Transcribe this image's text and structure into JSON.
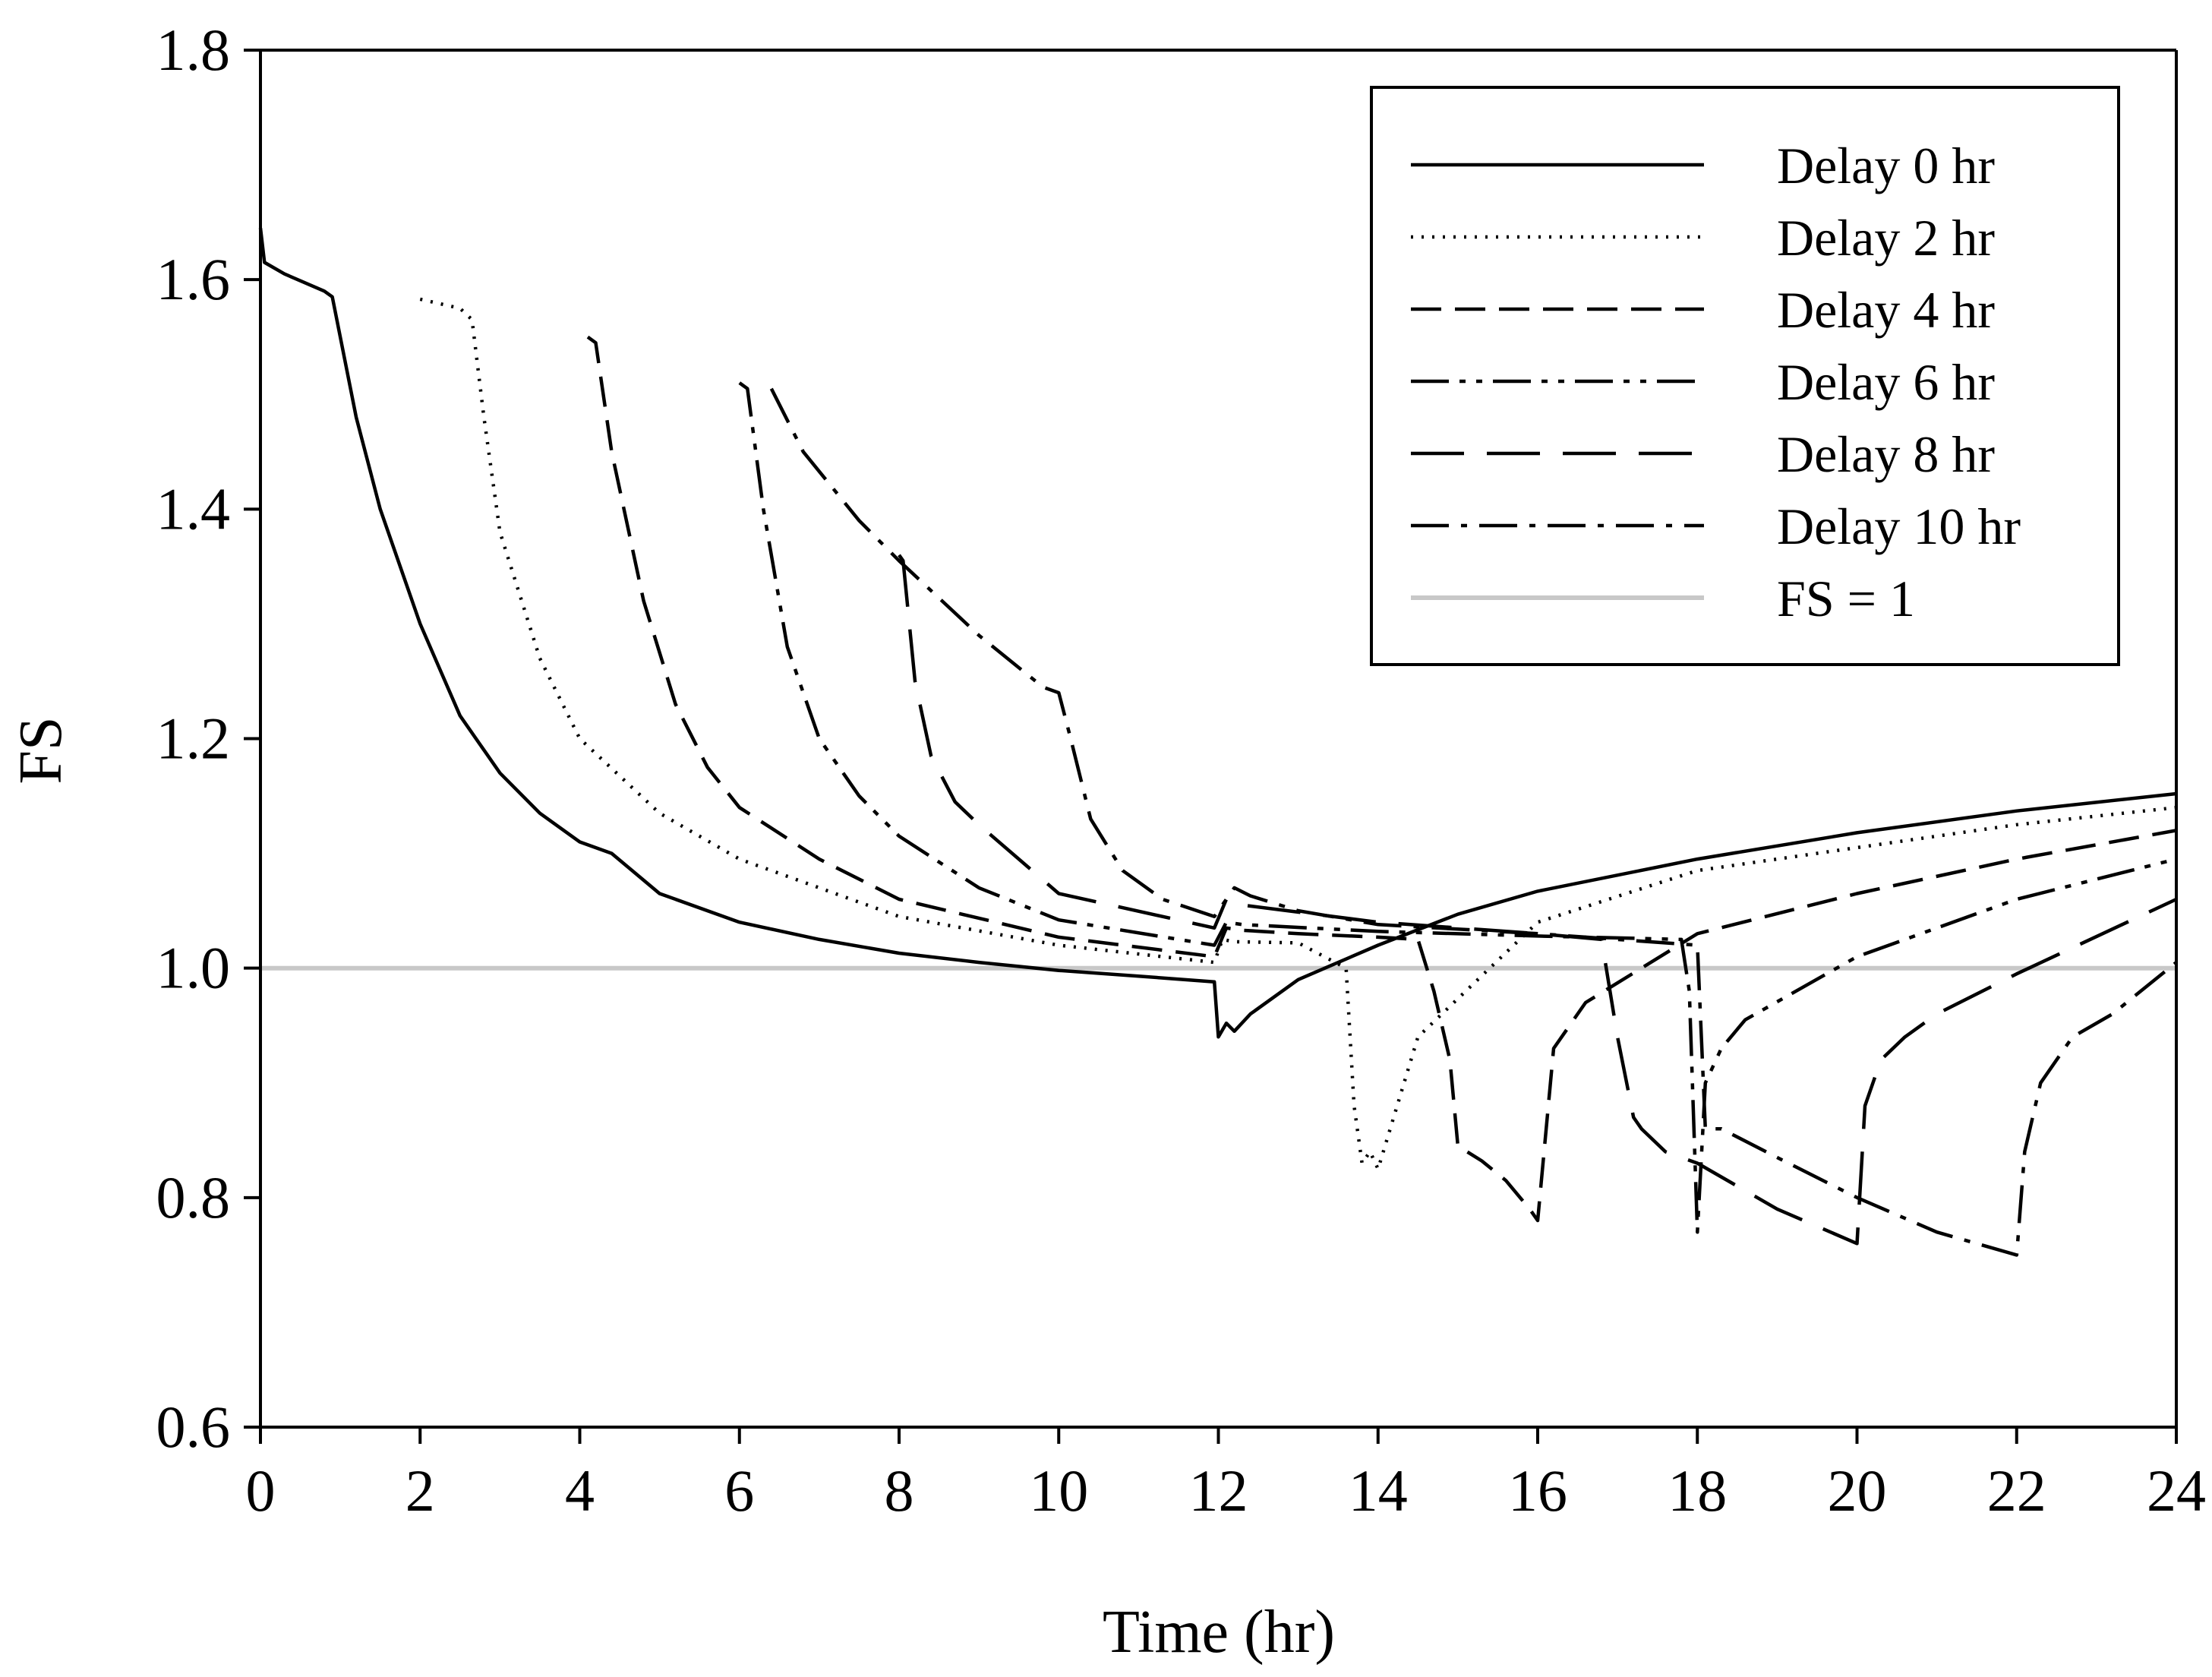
{
  "chart_data": {
    "type": "line",
    "title": "",
    "xlabel": "Time (hr)",
    "ylabel": "FS",
    "xlim": [
      0,
      24
    ],
    "ylim": [
      0.6,
      1.8
    ],
    "xticks": [
      "0",
      "2",
      "4",
      "6",
      "8",
      "10",
      "12",
      "14",
      "16",
      "18",
      "20",
      "22",
      "24"
    ],
    "yticks": [
      "0.6",
      "0.8",
      "1.0",
      "1.2",
      "1.4",
      "1.6",
      "1.8"
    ],
    "grid": false,
    "legend_position": "top-right",
    "series": [
      {
        "name": "Delay 0 hr",
        "color": "#000000",
        "dash": "solid",
        "x": [
          0,
          0.05,
          0.3,
          0.8,
          0.9,
          1.0,
          1.2,
          1.5,
          2.0,
          2.5,
          3.0,
          3.5,
          4.0,
          4.4,
          5.0,
          6.0,
          7.0,
          8.0,
          9.0,
          10.0,
          11.0,
          11.95,
          12.0,
          12.1,
          12.2,
          12.4,
          13.0,
          14.0,
          15.0,
          16.0,
          18.0,
          20.0,
          22.0,
          24.0
        ],
        "y": [
          1.645,
          1.615,
          1.605,
          1.59,
          1.585,
          1.55,
          1.48,
          1.4,
          1.3,
          1.22,
          1.17,
          1.135,
          1.11,
          1.1,
          1.065,
          1.04,
          1.025,
          1.013,
          1.005,
          0.998,
          0.993,
          0.988,
          0.94,
          0.952,
          0.945,
          0.96,
          0.99,
          1.02,
          1.047,
          1.067,
          1.095,
          1.118,
          1.137,
          1.152
        ]
      },
      {
        "name": "Delay 2 hr",
        "color": "#000000",
        "dash": "dotted",
        "x": [
          2.0,
          2.5,
          2.65,
          2.8,
          3.0,
          3.5,
          4.0,
          5.0,
          6.0,
          8.0,
          10.0,
          11.95,
          12.05,
          12.2,
          13.0,
          13.6,
          13.7,
          13.8,
          13.9,
          14.0,
          14.5,
          16.0,
          18.0,
          20.0,
          22.0,
          24.0
        ],
        "y": [
          1.583,
          1.575,
          1.565,
          1.48,
          1.38,
          1.27,
          1.2,
          1.135,
          1.095,
          1.045,
          1.02,
          1.005,
          1.025,
          1.023,
          1.022,
          1.0,
          0.88,
          0.83,
          0.84,
          0.825,
          0.94,
          1.04,
          1.085,
          1.105,
          1.125,
          1.14
        ]
      },
      {
        "name": "Delay 4 hr",
        "color": "#000000",
        "dash": "dashed",
        "x": [
          4.1,
          4.2,
          4.4,
          4.8,
          5.2,
          5.6,
          6.0,
          7.0,
          8.0,
          10.0,
          11.95,
          12.1,
          12.3,
          13.0,
          14.0,
          14.5,
          14.7,
          14.9,
          15.0,
          15.3,
          15.6,
          15.9,
          16.0,
          16.2,
          16.6,
          18.0,
          20.0,
          22.0,
          24.0
        ],
        "y": [
          1.55,
          1.545,
          1.45,
          1.32,
          1.23,
          1.175,
          1.14,
          1.095,
          1.06,
          1.027,
          1.01,
          1.035,
          1.033,
          1.03,
          1.027,
          1.025,
          0.98,
          0.92,
          0.845,
          0.832,
          0.815,
          0.79,
          0.78,
          0.93,
          0.97,
          1.03,
          1.065,
          1.095,
          1.12
        ]
      },
      {
        "name": "Delay 6 hr",
        "color": "#000000",
        "dash": "dashdotdot",
        "x": [
          6.0,
          6.1,
          6.3,
          6.6,
          7.0,
          7.5,
          8.0,
          9.0,
          10.0,
          11.95,
          12.1,
          12.3,
          14.0,
          16.0,
          17.8,
          17.9,
          18.0,
          18.1,
          18.3,
          18.6,
          20.0,
          22.0,
          24.0
        ],
        "y": [
          1.51,
          1.505,
          1.4,
          1.28,
          1.2,
          1.15,
          1.115,
          1.07,
          1.042,
          1.02,
          1.04,
          1.038,
          1.032,
          1.028,
          1.025,
          0.98,
          0.77,
          0.9,
          0.93,
          0.955,
          1.01,
          1.06,
          1.095
        ]
      },
      {
        "name": "Delay 8 hr",
        "color": "#000000",
        "dash": "longdash",
        "x": [
          8.0,
          8.05,
          8.2,
          8.4,
          8.7,
          9.0,
          10.0,
          11.95,
          12.1,
          12.3,
          14.0,
          16.0,
          16.8,
          17.0,
          17.2,
          17.3,
          17.6,
          18.0,
          19.0,
          20.0,
          20.1,
          20.3,
          20.6,
          21.0,
          22.0,
          24.0
        ],
        "y": [
          1.36,
          1.355,
          1.25,
          1.185,
          1.145,
          1.125,
          1.065,
          1.035,
          1.06,
          1.055,
          1.04,
          1.03,
          1.025,
          0.94,
          0.87,
          0.86,
          0.84,
          0.83,
          0.79,
          0.76,
          0.88,
          0.92,
          0.94,
          0.96,
          0.995,
          1.06
        ]
      },
      {
        "name": "Delay 10 hr",
        "color": "#000000",
        "dash": "dashdot",
        "x": [
          6.4,
          6.8,
          7.5,
          8.0,
          9.0,
          9.8,
          10.0,
          10.15,
          10.4,
          10.8,
          11.3,
          11.95,
          12.2,
          12.4,
          13.0,
          14.0,
          16.0,
          18.0,
          18.1,
          18.3,
          19.0,
          20.0,
          21.0,
          22.0,
          22.1,
          22.3,
          22.7,
          23.2,
          24.0
        ],
        "y": [
          1.505,
          1.45,
          1.39,
          1.355,
          1.29,
          1.245,
          1.24,
          1.2,
          1.13,
          1.085,
          1.06,
          1.045,
          1.07,
          1.063,
          1.05,
          1.038,
          1.03,
          1.02,
          0.86,
          0.86,
          0.835,
          0.8,
          0.77,
          0.75,
          0.84,
          0.9,
          0.94,
          0.96,
          1.005
        ]
      },
      {
        "name": "FS = 1",
        "color": "#c8c8c8",
        "dash": "solid",
        "x": [
          0,
          24
        ],
        "y": [
          1.0,
          1.0
        ]
      }
    ]
  }
}
